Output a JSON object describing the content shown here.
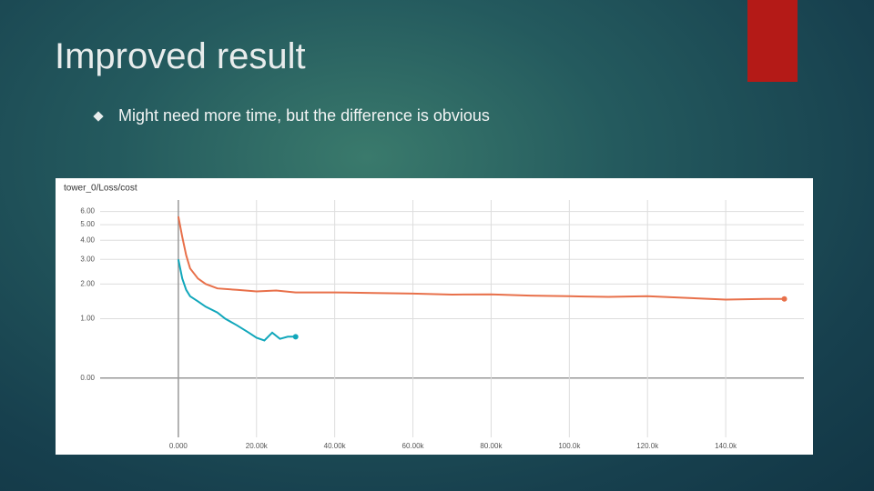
{
  "title": "Improved result",
  "bullet": "Might need more time, but the difference is obvious",
  "chart_data": {
    "type": "line",
    "title": "tower_0/Loss/cost",
    "yscale": "log1p",
    "grid": true,
    "xlim": [
      -20000,
      160000
    ],
    "xticks": [
      {
        "value": 0,
        "label": "0.000"
      },
      {
        "value": 20000,
        "label": "20.00k"
      },
      {
        "value": 40000,
        "label": "40.00k"
      },
      {
        "value": 60000,
        "label": "60.00k"
      },
      {
        "value": 80000,
        "label": "80.00k"
      },
      {
        "value": 100000,
        "label": "100.0k"
      },
      {
        "value": 120000,
        "label": "120.0k"
      },
      {
        "value": 140000,
        "label": "140.0k"
      }
    ],
    "ylim": [
      -1,
      7
    ],
    "yticks": [
      {
        "value": 0,
        "label": "0.00"
      },
      {
        "value": 1,
        "label": "1.00"
      },
      {
        "value": 2,
        "label": "2.00"
      },
      {
        "value": 3,
        "label": "3.00"
      },
      {
        "value": 4,
        "label": "4.00"
      },
      {
        "value": 5,
        "label": "5.00"
      },
      {
        "value": 6,
        "label": "6.00"
      }
    ],
    "series": [
      {
        "color": "#e8704a",
        "x": [
          0,
          1000,
          2000,
          3000,
          5000,
          7000,
          10000,
          15000,
          20000,
          25000,
          30000,
          40000,
          50000,
          60000,
          70000,
          80000,
          90000,
          100000,
          110000,
          120000,
          130000,
          140000,
          150000,
          155000
        ],
        "values": [
          5.6,
          4.2,
          3.2,
          2.6,
          2.2,
          2.0,
          1.85,
          1.8,
          1.75,
          1.78,
          1.72,
          1.72,
          1.7,
          1.68,
          1.65,
          1.66,
          1.62,
          1.6,
          1.58,
          1.6,
          1.55,
          1.5,
          1.52,
          1.52
        ]
      },
      {
        "color": "#11a7bb",
        "x": [
          0,
          1000,
          2000,
          3000,
          5000,
          7000,
          10000,
          12000,
          15000,
          18000,
          20000,
          22000,
          24000,
          26000,
          28000,
          30000
        ],
        "values": [
          3.0,
          2.2,
          1.8,
          1.6,
          1.45,
          1.3,
          1.15,
          1.0,
          0.85,
          0.7,
          0.6,
          0.55,
          0.7,
          0.58,
          0.62,
          0.62
        ]
      }
    ]
  }
}
